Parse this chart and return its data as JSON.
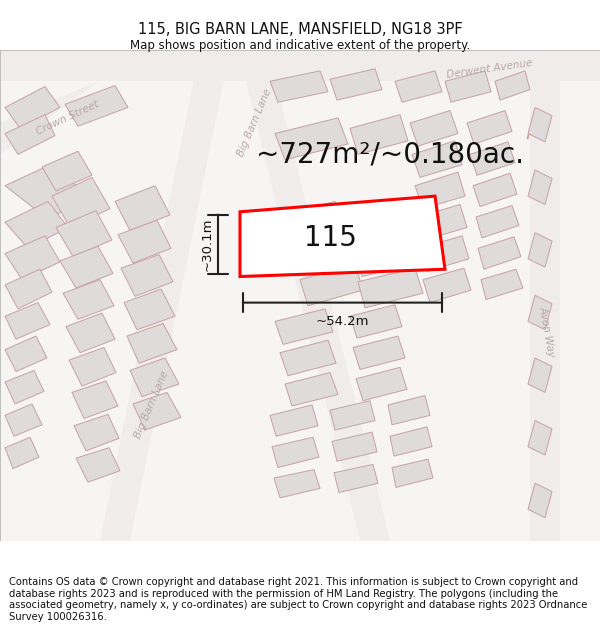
{
  "title": "115, BIG BARN LANE, MANSFIELD, NG18 3PF",
  "subtitle": "Map shows position and indicative extent of the property.",
  "area_text": "~727m²/~0.180ac.",
  "width_text": "~54.2m",
  "height_text": "~30.1m",
  "property_number": "115",
  "footer_text": "Contains OS data © Crown copyright and database right 2021. This information is subject to Crown copyright and database rights 2023 and is reproduced with the permission of HM Land Registry. The polygons (including the associated geometry, namely x, y co-ordinates) are subject to Crown copyright and database rights 2023 Ordnance Survey 100026316.",
  "bg_color": "#f7f4f4",
  "building_fill": "#e0dbdb",
  "building_edge": "#c8a0a0",
  "road_fill": "#ffffff",
  "property_fill": "#ffffff",
  "property_edge": "#ff0000",
  "dim_color": "#222222",
  "street_color": "#b8a8a8",
  "title_color": "#111111",
  "footer_color": "#111111"
}
